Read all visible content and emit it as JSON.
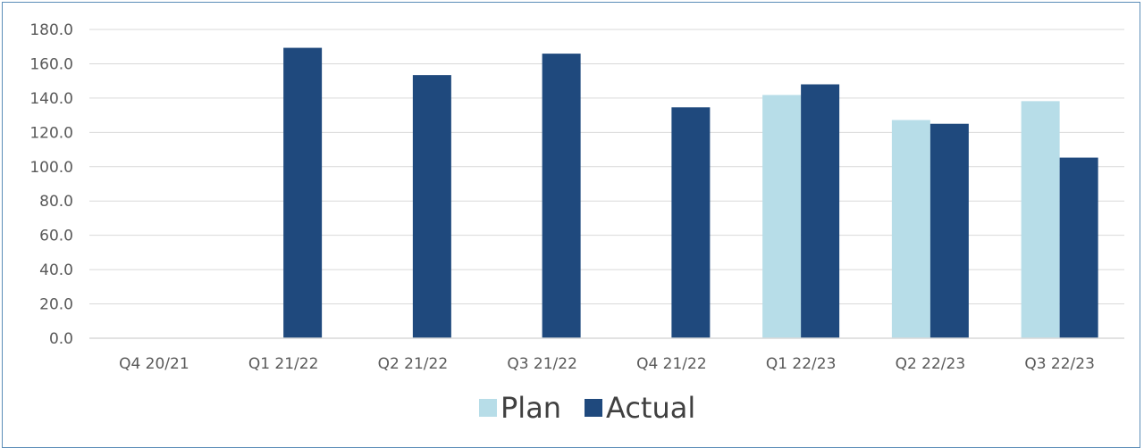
{
  "chart_data": {
    "type": "bar",
    "title": "",
    "xlabel": "",
    "ylabel": "",
    "categories": [
      "Q4 20/21",
      "Q1 21/22",
      "Q2 21/22",
      "Q3 21/22",
      "Q4 21/22",
      "Q1 22/23",
      "Q2 22/23",
      "Q3 22/23"
    ],
    "series": [
      {
        "name": "Plan",
        "color": "#b7dde8",
        "values": [
          null,
          null,
          null,
          null,
          null,
          141.8,
          127.2,
          138.2
        ]
      },
      {
        "name": "Actual",
        "color": "#1f497d",
        "values": [
          null,
          169.3,
          153.4,
          165.9,
          134.6,
          148.0,
          125.0,
          105.3
        ]
      }
    ],
    "ylim": [
      0,
      180
    ],
    "yticks": [
      "0.0",
      "20.0",
      "40.0",
      "60.0",
      "80.0",
      "100.0",
      "120.0",
      "140.0",
      "160.0",
      "180.0"
    ],
    "grid": true,
    "legend": "bottom-center"
  }
}
